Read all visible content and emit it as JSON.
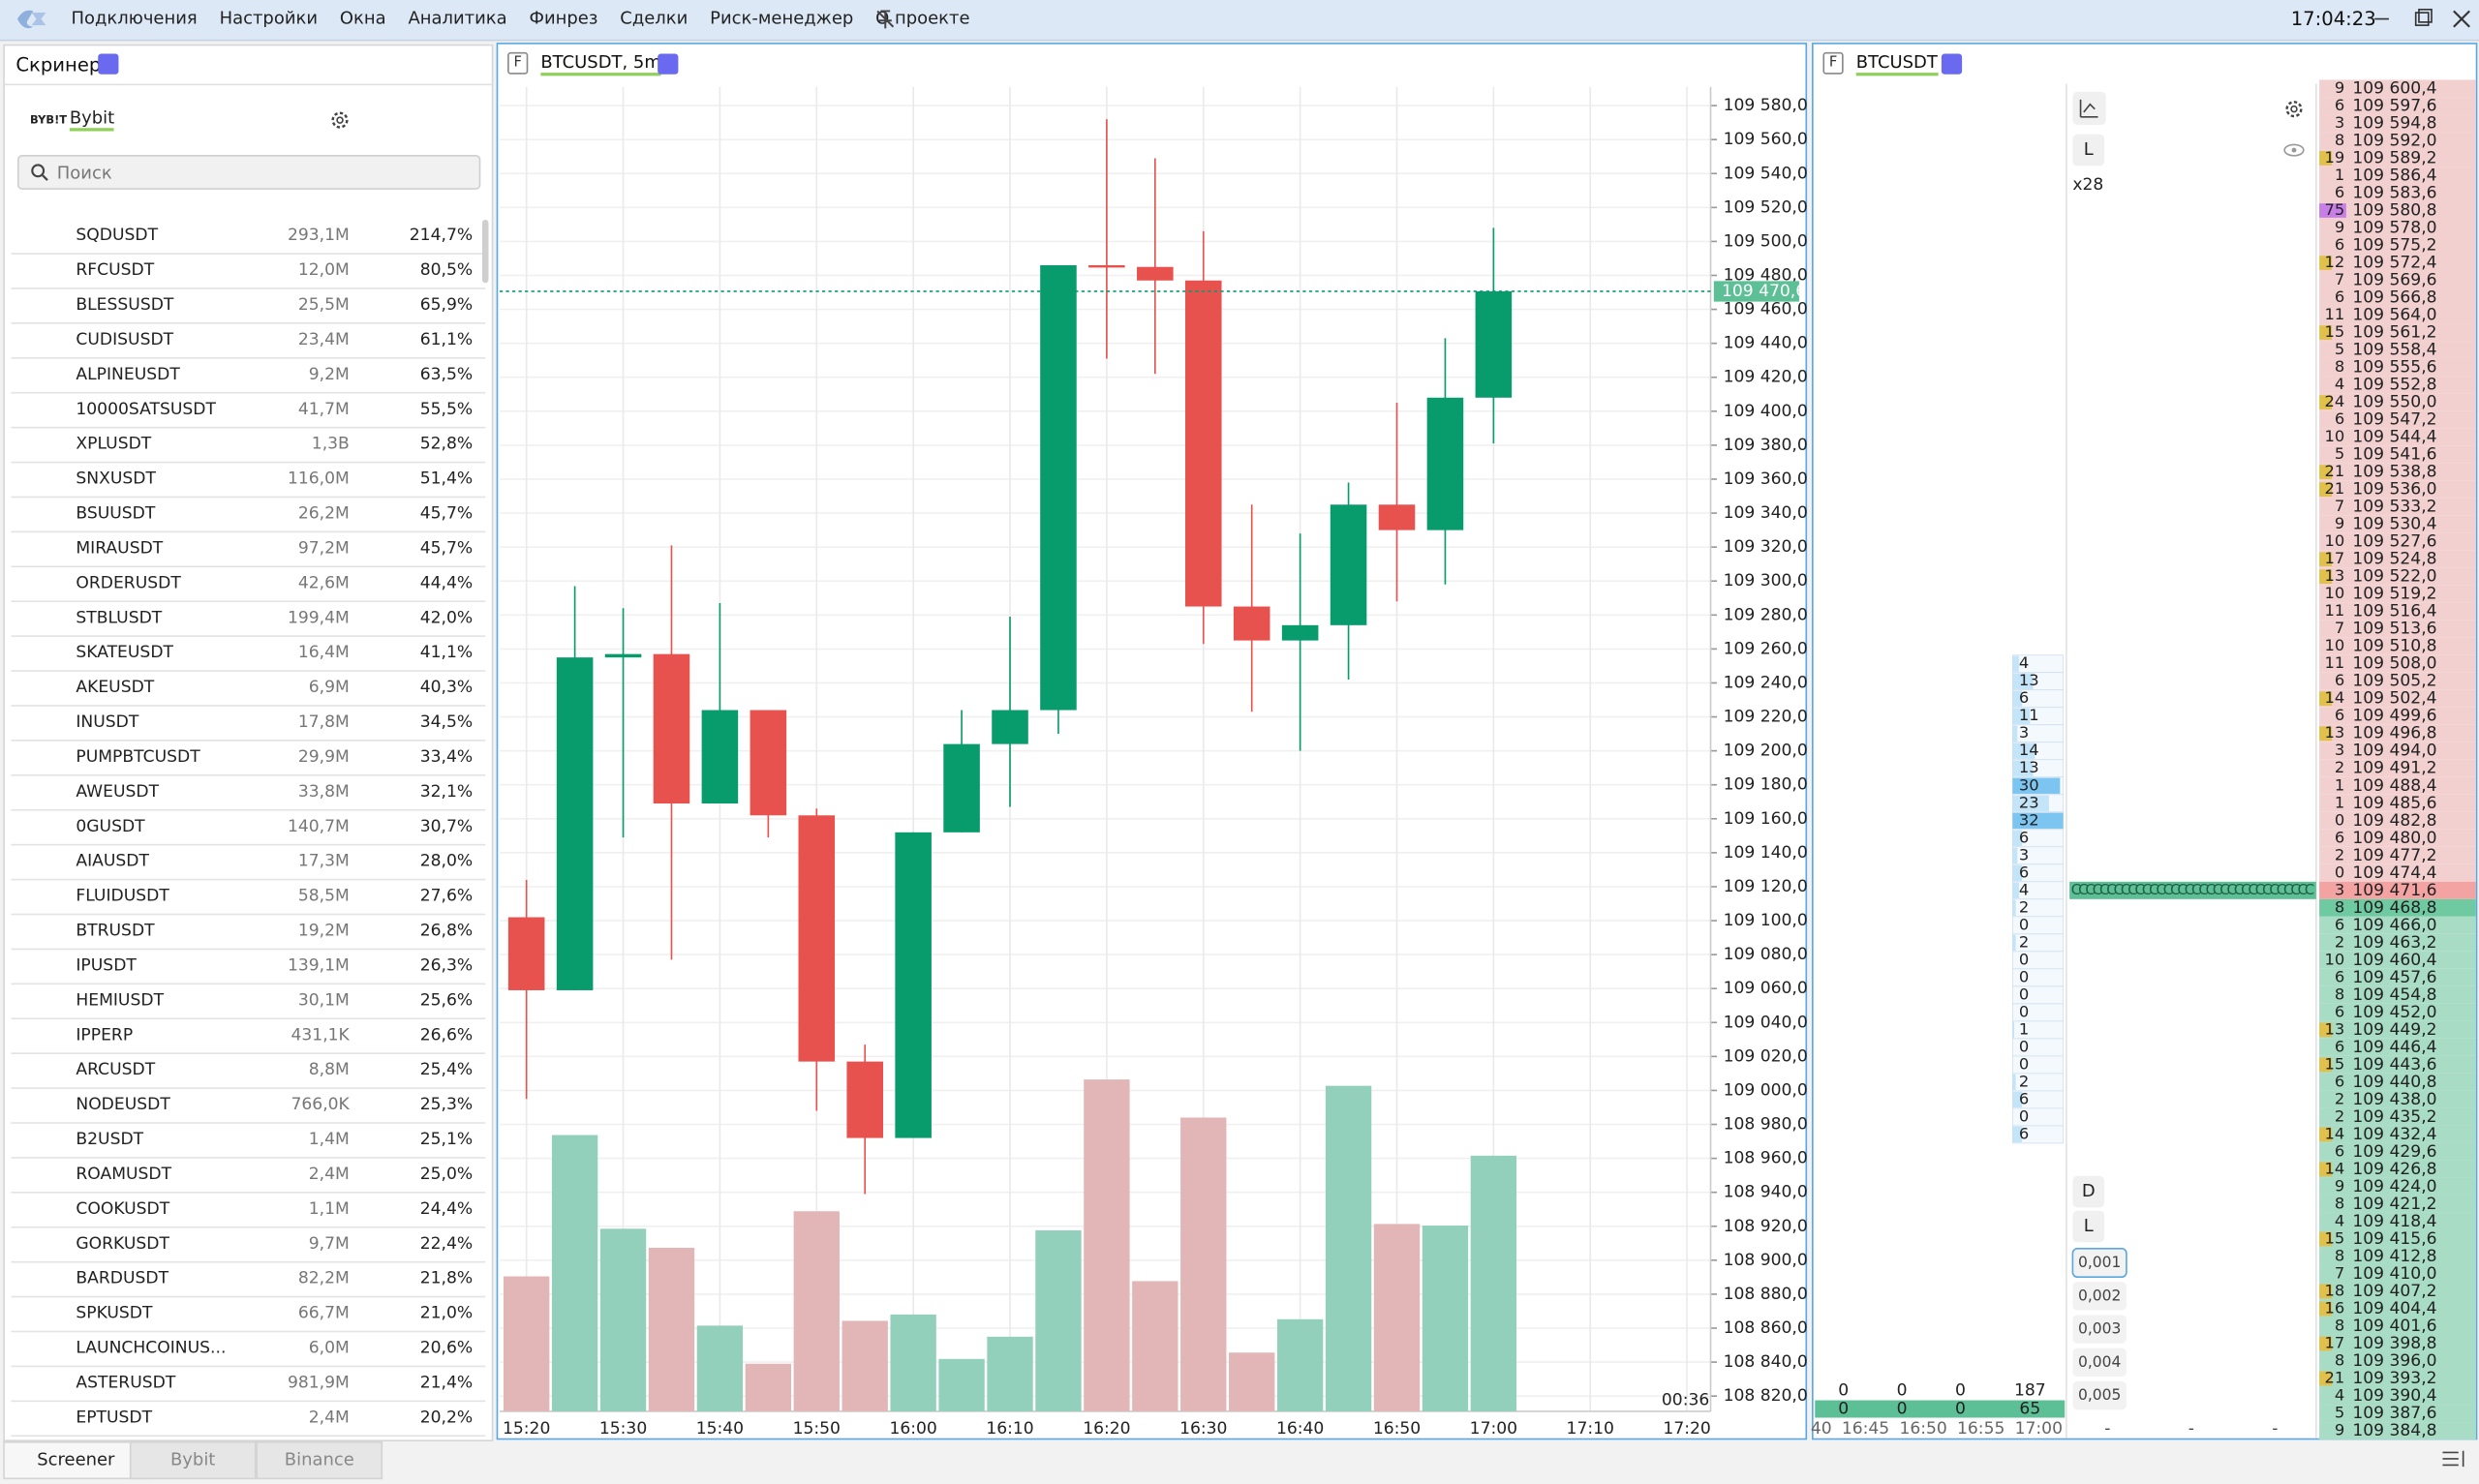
{
  "menu": {
    "items": [
      "Подключения",
      "Настройки",
      "Окна",
      "Аналитика",
      "Финрез",
      "Сделки",
      "Риск-менеджер",
      "О проекте"
    ],
    "time": "17:04:23"
  },
  "screener": {
    "title": "Скринер",
    "exchange": "Bybit",
    "search": "Поиск",
    "rows": [
      [
        "SQDUSDT",
        "293,1M",
        "214,7%"
      ],
      [
        "RFCUSDT",
        "12,0M",
        "80,5%"
      ],
      [
        "BLESSUSDT",
        "25,5M",
        "65,9%"
      ],
      [
        "CUDISUSDT",
        "23,4M",
        "61,1%"
      ],
      [
        "ALPINEUSDT",
        "9,2M",
        "63,5%"
      ],
      [
        "10000SATSUSDT",
        "41,7M",
        "55,5%"
      ],
      [
        "XPLUSDT",
        "1,3B",
        "52,8%"
      ],
      [
        "SNXUSDT",
        "116,0M",
        "51,4%"
      ],
      [
        "BSUUSDT",
        "26,2M",
        "45,7%"
      ],
      [
        "MIRAUSDT",
        "97,2M",
        "45,7%"
      ],
      [
        "ORDERUSDT",
        "42,6M",
        "44,4%"
      ],
      [
        "STBLUSDT",
        "199,4M",
        "42,0%"
      ],
      [
        "SKATEUSDT",
        "16,4M",
        "41,1%"
      ],
      [
        "AKEUSDT",
        "6,9M",
        "40,3%"
      ],
      [
        "INUSDT",
        "17,8M",
        "34,5%"
      ],
      [
        "PUMPBTCUSDT",
        "29,9M",
        "33,4%"
      ],
      [
        "AWEUSDT",
        "33,8M",
        "32,1%"
      ],
      [
        "0GUSDT",
        "140,7M",
        "30,7%"
      ],
      [
        "AIAUSDT",
        "17,3M",
        "28,0%"
      ],
      [
        "FLUIDUSDT",
        "58,5M",
        "27,6%"
      ],
      [
        "BTRUSDT",
        "19,2M",
        "26,8%"
      ],
      [
        "IPUSDT",
        "139,1M",
        "26,3%"
      ],
      [
        "HEMIUSDT",
        "30,1M",
        "25,6%"
      ],
      [
        "IPPERP",
        "431,1K",
        "26,6%"
      ],
      [
        "ARCUSDT",
        "8,8M",
        "25,4%"
      ],
      [
        "NODEUSDT",
        "766,0K",
        "25,3%"
      ],
      [
        "B2USDT",
        "1,4M",
        "25,1%"
      ],
      [
        "ROAMUSDT",
        "2,4M",
        "25,0%"
      ],
      [
        "COOKUSDT",
        "1,1M",
        "24,4%"
      ],
      [
        "GORKUSDT",
        "9,7M",
        "22,4%"
      ],
      [
        "BARDUSDT",
        "82,2M",
        "21,8%"
      ],
      [
        "SPKUSDT",
        "66,7M",
        "21,0%"
      ],
      [
        "LAUNCHCOINUS...",
        "6,0M",
        "20,6%"
      ],
      [
        "ASTERUSDT",
        "981,9M",
        "21,4%"
      ],
      [
        "EPTUSDT",
        "2,4M",
        "20,2%"
      ]
    ],
    "tabs": [
      "Screener",
      "Bybit",
      "Binance"
    ]
  },
  "chart": {
    "type": "candlestick",
    "badge": "F",
    "title": "BTCUSDT, 5m",
    "countdown": "00:36",
    "xticks": [
      "15:20",
      "15:30",
      "15:40",
      "15:50",
      "16:00",
      "16:10",
      "16:20",
      "16:30",
      "16:40",
      "16:50",
      "17:00",
      "17:10",
      "17:20"
    ],
    "open": [
      109102,
      109059,
      109255,
      109257,
      109169,
      109224,
      109162,
      109017,
      108972,
      109152,
      109204,
      109224,
      109486,
      109485,
      109477,
      109285,
      109265,
      109274,
      109345,
      109330,
      109408
    ],
    "high": [
      109124,
      109297,
      109284,
      109321,
      109287,
      109224,
      109166,
      109027,
      109152,
      109224,
      109279,
      109486,
      109572,
      109549,
      109506,
      109345,
      109328,
      109358,
      109405,
      109443,
      109508
    ],
    "low": [
      108995,
      109059,
      109149,
      109077,
      109169,
      109149,
      108988,
      108939,
      108972,
      109152,
      109167,
      109210,
      109431,
      109422,
      109263,
      109223,
      109200,
      109242,
      109288,
      109298,
      109381
    ],
    "close": [
      109059,
      109255,
      109257,
      109169,
      109224,
      109162,
      109017,
      108972,
      109152,
      109204,
      109224,
      109486,
      109485,
      109477,
      109285,
      109265,
      109274,
      109345,
      109330,
      109408,
      109470.6
    ],
    "volume": [
      85,
      174,
      115,
      103,
      54,
      30,
      126,
      57,
      61,
      33,
      47,
      114,
      209,
      82,
      185,
      37,
      58,
      205,
      118,
      117,
      161
    ],
    "up_color": "#089b6b",
    "down_color": "#e8524e",
    "up_volume_color": "#93d0bc",
    "down_volume_color": "#e2b6b6",
    "ylim": [
      108811,
      109591
    ],
    "yticks": [
      {
        "value": 109580,
        "label": "109 580,0"
      },
      {
        "value": 109560,
        "label": "109 560,0"
      },
      {
        "value": 109540,
        "label": "109 540,0"
      },
      {
        "value": 109520,
        "label": "109 520,0"
      },
      {
        "value": 109500,
        "label": "109 500,0"
      },
      {
        "value": 109480,
        "label": "109 480,0"
      },
      {
        "value": 109460,
        "label": "109 460,0"
      },
      {
        "value": 109440,
        "label": "109 440,0"
      },
      {
        "value": 109420,
        "label": "109 420,0"
      },
      {
        "value": 109400,
        "label": "109 400,0"
      },
      {
        "value": 109380,
        "label": "109 380,0"
      },
      {
        "value": 109360,
        "label": "109 360,0"
      },
      {
        "value": 109340,
        "label": "109 340,0"
      },
      {
        "value": 109320,
        "label": "109 320,0"
      },
      {
        "value": 109300,
        "label": "109 300,0"
      },
      {
        "value": 109280,
        "label": "109 280,0"
      },
      {
        "value": 109260,
        "label": "109 260,0"
      },
      {
        "value": 109240,
        "label": "109 240,0"
      },
      {
        "value": 109220,
        "label": "109 220,0"
      },
      {
        "value": 109200,
        "label": "109 200,0"
      },
      {
        "value": 109180,
        "label": "109 180,0"
      },
      {
        "value": 109160,
        "label": "109 160,0"
      },
      {
        "value": 109140,
        "label": "109 140,0"
      },
      {
        "value": 109120,
        "label": "109 120,0"
      },
      {
        "value": 109100,
        "label": "109 100,0"
      },
      {
        "value": 109080,
        "label": "109 080,0"
      },
      {
        "value": 109060,
        "label": "109 060,0"
      },
      {
        "value": 109040,
        "label": "109 040,0"
      },
      {
        "value": 109020,
        "label": "109 020,0"
      },
      {
        "value": 109000,
        "label": "109 000,0"
      },
      {
        "value": 108980,
        "label": "108 980,0"
      },
      {
        "value": 108960,
        "label": "108 960,0"
      },
      {
        "value": 108940,
        "label": "108 940,0"
      },
      {
        "value": 108920,
        "label": "108 920,0"
      },
      {
        "value": 108900,
        "label": "108 900,0"
      },
      {
        "value": 108880,
        "label": "108 880,0"
      },
      {
        "value": 108860,
        "label": "108 860,0"
      },
      {
        "value": 108840,
        "label": "108 840,0"
      },
      {
        "value": 108820,
        "label": "108 820,0"
      }
    ],
    "last_price": {
      "value": 109470.6,
      "label": "109 470,6"
    },
    "grid": true
  },
  "dom": {
    "badge": "F",
    "title": "BTCUSDT",
    "multiplier": "x28",
    "mode_buttons": [
      "L",
      "D",
      "L"
    ],
    "steps": [
      "0,001",
      "0,002",
      "0,003",
      "0,004",
      "0,005"
    ],
    "ladder": {
      "prices": [
        "109 600,4",
        "109 597,6",
        "109 594,8",
        "109 592,0",
        "109 589,2",
        "109 586,4",
        "109 583,6",
        "109 580,8",
        "109 578,0",
        "109 575,2",
        "109 572,4",
        "109 569,6",
        "109 566,8",
        "109 564,0",
        "109 561,2",
        "109 558,4",
        "109 555,6",
        "109 552,8",
        "109 550,0",
        "109 547,2",
        "109 544,4",
        "109 541,6",
        "109 538,8",
        "109 536,0",
        "109 533,2",
        "109 530,4",
        "109 527,6",
        "109 524,8",
        "109 522,0",
        "109 519,2",
        "109 516,4",
        "109 513,6",
        "109 510,8",
        "109 508,0",
        "109 505,2",
        "109 502,4",
        "109 499,6",
        "109 496,8",
        "109 494,0",
        "109 491,2",
        "109 488,4",
        "109 485,6",
        "109 482,8",
        "109 480,0",
        "109 477,2",
        "109 474,4",
        "109 471,6",
        "109 468,8",
        "109 466,0",
        "109 463,2",
        "109 460,4",
        "109 457,6",
        "109 454,8",
        "109 452,0",
        "109 449,2",
        "109 446,4",
        "109 443,6",
        "109 440,8",
        "109 438,0",
        "109 435,2",
        "109 432,4",
        "109 429,6",
        "109 426,8",
        "109 424,0",
        "109 421,2",
        "109 418,4",
        "109 415,6",
        "109 412,8",
        "109 410,0",
        "109 407,2",
        "109 404,4",
        "109 401,6",
        "109 398,8",
        "109 396,0",
        "109 393,2",
        "109 390,4",
        "109 387,6",
        "109 384,8"
      ],
      "sizes": [
        9,
        6,
        3,
        8,
        19,
        1,
        6,
        75,
        9,
        6,
        12,
        7,
        6,
        11,
        15,
        5,
        8,
        4,
        24,
        6,
        10,
        5,
        21,
        21,
        7,
        9,
        10,
        17,
        13,
        10,
        11,
        7,
        10,
        11,
        6,
        14,
        6,
        13,
        3,
        2,
        1,
        1,
        0,
        6,
        2,
        0,
        3,
        8,
        6,
        2,
        10,
        6,
        8,
        6,
        13,
        6,
        15,
        6,
        2,
        2,
        14,
        6,
        14,
        9,
        8,
        4,
        15,
        8,
        7,
        18,
        16,
        8,
        17,
        8,
        21,
        4,
        5,
        9
      ],
      "clusters": [
        null,
        null,
        null,
        null,
        null,
        null,
        null,
        null,
        null,
        null,
        null,
        null,
        null,
        null,
        null,
        null,
        null,
        null,
        null,
        null,
        null,
        null,
        null,
        null,
        null,
        null,
        null,
        null,
        null,
        null,
        null,
        null,
        null,
        4,
        13,
        6,
        11,
        3,
        14,
        13,
        30,
        23,
        32,
        6,
        3,
        6,
        4,
        2,
        0,
        2,
        0,
        0,
        0,
        0,
        1,
        0,
        0,
        2,
        6,
        0,
        6,
        null,
        null,
        null,
        null,
        null,
        null,
        null,
        null,
        null,
        null,
        null,
        null,
        null,
        null,
        null,
        null,
        null
      ],
      "tape": "CCCCCCCCCCCCCCCCCCCCCCCCCCCCCCCCCC"
    },
    "stats": {
      "rows": [
        [
          "0",
          "0",
          "0",
          "187"
        ],
        [
          "0",
          "0",
          "0",
          "65"
        ]
      ],
      "times": [
        "40",
        "16:45",
        "16:50",
        "16:55",
        "17:00"
      ],
      "dashes": [
        "-",
        "-",
        "-"
      ]
    }
  }
}
